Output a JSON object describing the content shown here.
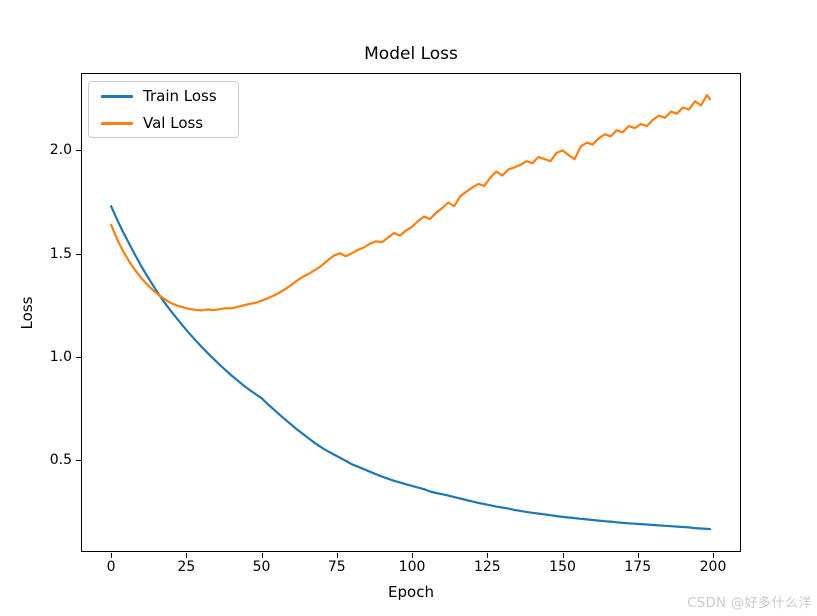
{
  "watermark": "CSDN @好多什么洋",
  "chart_data": {
    "type": "line",
    "title": "Model Loss",
    "xlabel": "Epoch",
    "ylabel": "Loss",
    "x_ticks": [
      0,
      25,
      50,
      75,
      100,
      125,
      150,
      175,
      200
    ],
    "y_ticks": [
      0.5,
      1.0,
      1.5,
      2.0
    ],
    "xlim": [
      -10,
      209.3
    ],
    "ylim": [
      0.055,
      2.375
    ],
    "grid": false,
    "legend": {
      "position": "upper left",
      "entries": [
        "Train Loss",
        "Val Loss"
      ]
    },
    "x": [
      0,
      2,
      4,
      6,
      8,
      10,
      12,
      14,
      16,
      18,
      20,
      22,
      24,
      26,
      28,
      30,
      32,
      34,
      36,
      38,
      40,
      42,
      44,
      46,
      48,
      50,
      52,
      54,
      56,
      58,
      60,
      62,
      64,
      66,
      68,
      70,
      72,
      74,
      76,
      78,
      80,
      82,
      84,
      86,
      88,
      90,
      92,
      94,
      96,
      98,
      100,
      102,
      104,
      106,
      108,
      110,
      112,
      114,
      116,
      118,
      120,
      122,
      124,
      126,
      128,
      130,
      132,
      134,
      136,
      138,
      140,
      142,
      144,
      146,
      148,
      150,
      152,
      154,
      156,
      158,
      160,
      162,
      164,
      166,
      168,
      170,
      172,
      174,
      176,
      178,
      180,
      182,
      184,
      186,
      188,
      190,
      192,
      194,
      196,
      198,
      199
    ],
    "series": [
      {
        "name": "Train Loss",
        "color": "#1f77b4",
        "values": [
          1.73,
          1.665,
          1.605,
          1.548,
          1.493,
          1.44,
          1.392,
          1.345,
          1.3,
          1.258,
          1.22,
          1.184,
          1.148,
          1.114,
          1.081,
          1.05,
          1.02,
          0.991,
          0.963,
          0.936,
          0.91,
          0.886,
          0.862,
          0.84,
          0.82,
          0.8,
          0.772,
          0.746,
          0.72,
          0.695,
          0.67,
          0.646,
          0.624,
          0.602,
          0.58,
          0.56,
          0.543,
          0.527,
          0.512,
          0.496,
          0.48,
          0.468,
          0.456,
          0.444,
          0.432,
          0.42,
          0.41,
          0.4,
          0.392,
          0.383,
          0.375,
          0.367,
          0.359,
          0.348,
          0.341,
          0.335,
          0.328,
          0.321,
          0.314,
          0.307,
          0.3,
          0.293,
          0.287,
          0.281,
          0.275,
          0.27,
          0.265,
          0.259,
          0.254,
          0.249,
          0.245,
          0.241,
          0.237,
          0.233,
          0.229,
          0.225,
          0.222,
          0.219,
          0.216,
          0.213,
          0.21,
          0.207,
          0.204,
          0.202,
          0.199,
          0.196,
          0.194,
          0.192,
          0.19,
          0.188,
          0.186,
          0.184,
          0.182,
          0.18,
          0.178,
          0.176,
          0.174,
          0.171,
          0.169,
          0.167,
          0.166
        ]
      },
      {
        "name": "Val Loss",
        "color": "#ff7f0e",
        "values": [
          1.64,
          1.57,
          1.512,
          1.462,
          1.42,
          1.382,
          1.35,
          1.322,
          1.298,
          1.277,
          1.26,
          1.248,
          1.24,
          1.232,
          1.228,
          1.225,
          1.23,
          1.226,
          1.231,
          1.236,
          1.235,
          1.242,
          1.25,
          1.256,
          1.262,
          1.272,
          1.284,
          1.297,
          1.312,
          1.33,
          1.35,
          1.372,
          1.39,
          1.405,
          1.423,
          1.443,
          1.468,
          1.49,
          1.502,
          1.488,
          1.502,
          1.518,
          1.53,
          1.548,
          1.56,
          1.556,
          1.578,
          1.6,
          1.588,
          1.612,
          1.63,
          1.658,
          1.68,
          1.668,
          1.698,
          1.72,
          1.748,
          1.73,
          1.778,
          1.8,
          1.82,
          1.838,
          1.828,
          1.868,
          1.898,
          1.878,
          1.908,
          1.918,
          1.93,
          1.948,
          1.938,
          1.968,
          1.958,
          1.948,
          1.988,
          2.0,
          1.978,
          1.958,
          2.018,
          2.038,
          2.028,
          2.058,
          2.078,
          2.068,
          2.098,
          2.088,
          2.118,
          2.108,
          2.128,
          2.118,
          2.148,
          2.168,
          2.158,
          2.188,
          2.178,
          2.208,
          2.198,
          2.238,
          2.218,
          2.268,
          2.248
        ]
      }
    ]
  }
}
